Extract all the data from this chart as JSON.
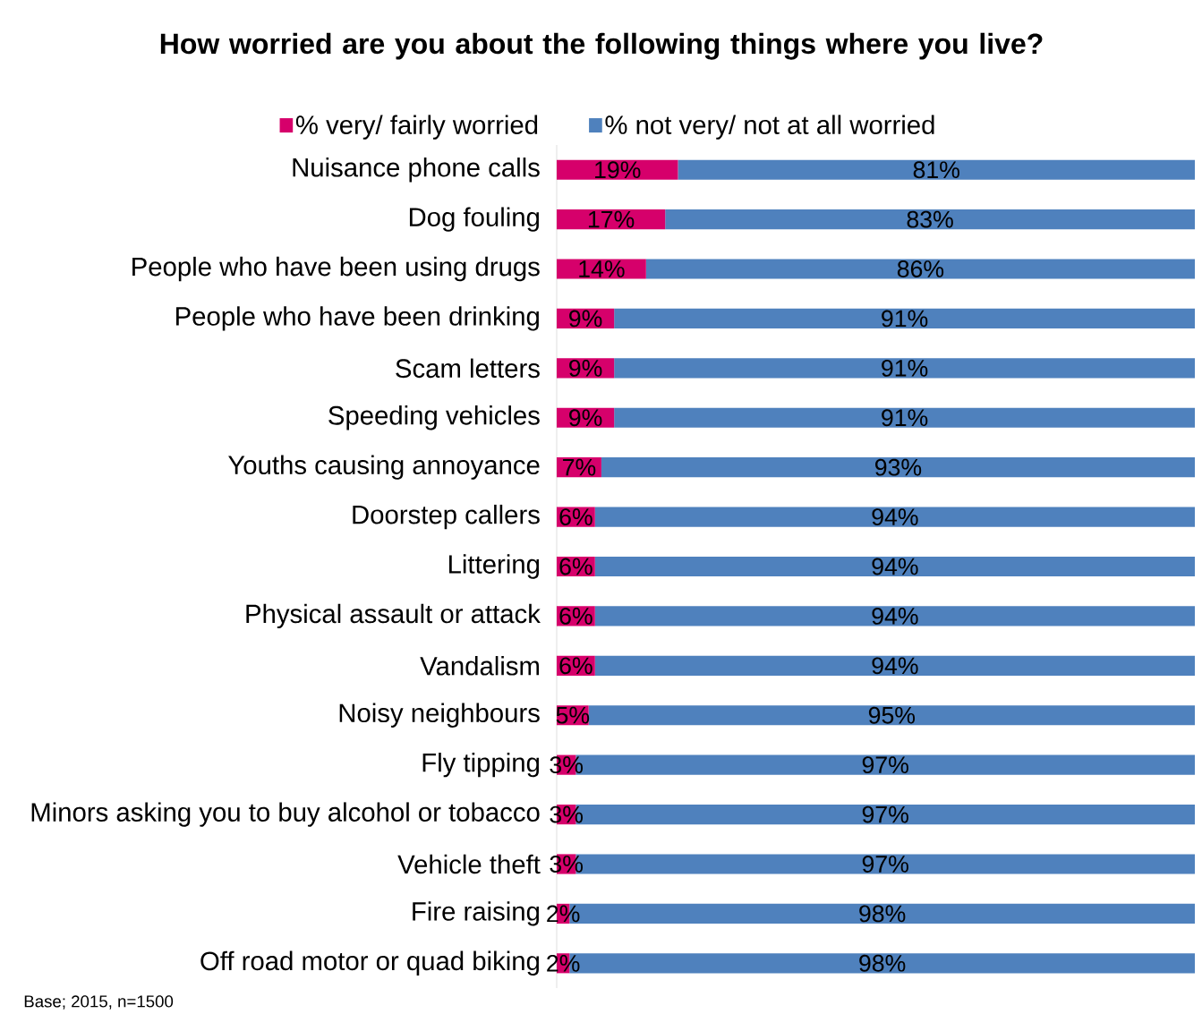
{
  "chart_data": {
    "type": "bar",
    "orientation": "horizontal",
    "stacked": true,
    "title": "How worried are you about the following things where you live?",
    "categories": [
      "Nuisance phone calls",
      "Dog fouling",
      "People who have been using drugs",
      "People who have been drinking",
      "Scam letters",
      "Speeding vehicles",
      "Youths causing annoyance",
      "Doorstep callers",
      "Littering",
      "Physical assault or attack",
      "Vandalism",
      "Noisy neighbours",
      "Fly tipping",
      "Minors asking you to buy alcohol or tobacco",
      "Vehicle theft",
      "Fire raising",
      "Off road motor or quad biking"
    ],
    "series": [
      {
        "name": "% very/ fairly worried",
        "color": "#d6006b",
        "values": [
          19,
          17,
          14,
          9,
          9,
          9,
          7,
          6,
          6,
          6,
          6,
          5,
          3,
          3,
          3,
          2,
          2
        ],
        "value_labels": [
          "19%",
          "17%",
          "14%",
          "9%",
          "9%",
          "9%",
          "7%",
          "6%",
          "6%",
          "6%",
          "6%",
          "5%",
          "3%",
          "3%",
          "3%",
          "2%",
          "2%"
        ]
      },
      {
        "name": "% not very/ not at all worried",
        "color": "#4f81bd",
        "values": [
          81,
          83,
          86,
          91,
          91,
          91,
          93,
          94,
          94,
          94,
          94,
          95,
          97,
          97,
          97,
          98,
          98
        ],
        "value_labels": [
          "81%",
          "83%",
          "86%",
          "91%",
          "91%",
          "91%",
          "93%",
          "94%",
          "94%",
          "94%",
          "94%",
          "95%",
          "97%",
          "97%",
          "97%",
          "98%",
          "98%"
        ]
      }
    ],
    "xlim": [
      0,
      100
    ],
    "tick_labels": "y",
    "legend": "top",
    "annotations": [
      "Base; 2015, n=1500"
    ]
  }
}
